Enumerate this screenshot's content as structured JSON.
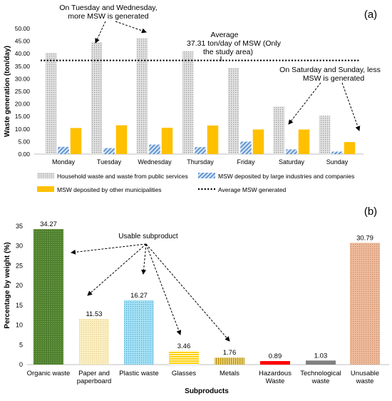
{
  "chart_data": [
    {
      "type": "bar",
      "panel_label": "(a)",
      "ylabel": "Waste generation (ton/day)",
      "ylim": [
        0,
        50
      ],
      "yticks": [
        "0.00",
        "5.00",
        "10.00",
        "15.00",
        "20.00",
        "25.00",
        "30.00",
        "35.00",
        "40.00",
        "45.00",
        "50.00"
      ],
      "categories": [
        "Monday",
        "Tuesday",
        "Wednesday",
        "Thursday",
        "Friday",
        "Saturday",
        "Sunday"
      ],
      "series": [
        {
          "name": "Household waste and waste from public services",
          "values": [
            40.3,
            44.5,
            46.1,
            41.0,
            34.3,
            18.9,
            15.3
          ],
          "color": "#c8c8c8",
          "pattern": "dots"
        },
        {
          "name": "MSW deposited by large industries and companies",
          "values": [
            2.9,
            2.4,
            3.8,
            2.8,
            5.0,
            1.9,
            1.0
          ],
          "color": "#6f9fd8",
          "pattern": "diagonal"
        },
        {
          "name": "MSW deposited by other municipalities",
          "values": [
            10.4,
            11.5,
            10.5,
            11.4,
            9.8,
            9.8,
            4.8
          ],
          "color": "#ffc000",
          "pattern": "solid"
        }
      ],
      "reference_line": {
        "name": "Average MSW generated",
        "value": 37.31,
        "style": "dotted"
      },
      "annotations": {
        "weekday_top": "On Tuesday and Wednesday,",
        "weekday_bottom": "more MSW is generated",
        "average_line1": "Average",
        "average_line2": "37.31 ton/day of MSW (Only",
        "average_line3": "the study area)",
        "weekend_top": "On Saturday and Sunday, less",
        "weekend_bottom": "MSW is generated"
      },
      "legend_position": "bottom",
      "grid": false
    },
    {
      "type": "bar",
      "panel_label": "(b)",
      "xlabel": "Subproducts",
      "ylabel": "Percentage by weight (%)",
      "ylim": [
        0,
        35
      ],
      "yticks": [
        "0",
        "5",
        "10",
        "15",
        "20",
        "25",
        "30",
        "35"
      ],
      "categories": [
        [
          "Organic waste"
        ],
        [
          "Paper and",
          "paperboard"
        ],
        [
          "Plastic waste"
        ],
        [
          "Glasses"
        ],
        [
          "Metals"
        ],
        [
          "Hazardous",
          "Waste"
        ],
        [
          "Technological",
          "waste"
        ],
        [
          "Unusable",
          "waste"
        ]
      ],
      "values": [
        34.27,
        11.53,
        16.27,
        3.46,
        1.76,
        0.89,
        1.03,
        30.79
      ],
      "value_labels": [
        "34.27",
        "11.53",
        "16.27",
        "3.46",
        "1.76",
        "0.89",
        "1.03",
        "30.79"
      ],
      "colors": [
        "#4e7f2e",
        "#fbe9b0",
        "#9edcf2",
        "#ffd000",
        "#d9b22a",
        "#ff0000",
        "#808080",
        "#e9b394"
      ],
      "patterns": [
        "dots",
        "dots",
        "dots",
        "hlines",
        "vlines",
        "solid",
        "solid",
        "dots"
      ],
      "annotation": "Usable subproduct",
      "grid": false
    }
  ]
}
